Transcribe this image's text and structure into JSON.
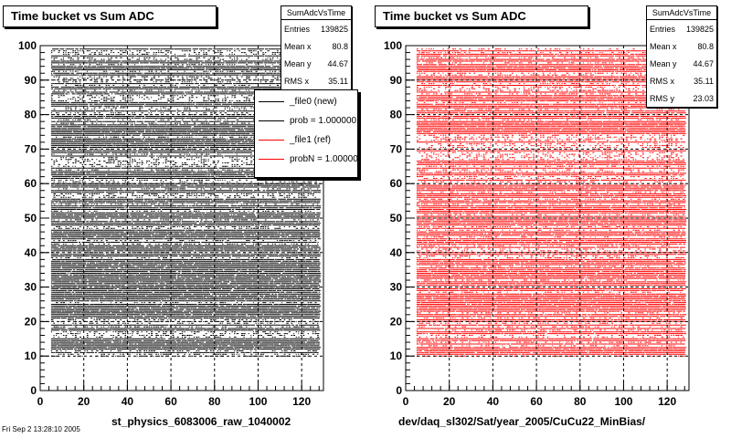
{
  "chart_data": [
    {
      "type": "scatter",
      "title": "Time bucket vs Sum ADC",
      "xlabel": "st_physics_6083006_raw_1040002",
      "ylabel": "",
      "xlim": [
        0,
        130
      ],
      "ylim": [
        0,
        100
      ],
      "x_ticks": [
        "0",
        "20",
        "40",
        "60",
        "80",
        "100",
        "120"
      ],
      "y_ticks": [
        "0",
        "10",
        "20",
        "30",
        "40",
        "50",
        "60",
        "70",
        "80",
        "90",
        "100"
      ],
      "grid": true,
      "marker_color": "#000000",
      "x_range_points": [
        5,
        128
      ],
      "y_range_points": [
        10,
        99
      ],
      "stats": {
        "name": "SumAdcVsTime",
        "rows": [
          {
            "label": "Entries",
            "value": "139825"
          },
          {
            "label": "Mean x",
            "value": "80.8"
          },
          {
            "label": "Mean y",
            "value": "44.67"
          },
          {
            "label": "RMS x",
            "value": "35.11"
          }
        ]
      },
      "legend": {
        "placement": "top-right",
        "entries": [
          {
            "label": "_file0 (new)",
            "color": "#000000"
          },
          {
            "label": "prob = 1.000000",
            "color": "#000000"
          },
          {
            "label": "_file1 (ref)",
            "color": "#ff0000"
          },
          {
            "label": "probN = 1.000000",
            "color": "#ff0000"
          }
        ]
      }
    },
    {
      "type": "scatter",
      "title": "Time bucket vs Sum ADC",
      "xlabel": "dev/daq_sl302/Sat/year_2005/CuCu22_MinBias/",
      "ylabel": "",
      "xlim": [
        0,
        130
      ],
      "ylim": [
        0,
        100
      ],
      "x_ticks": [
        "0",
        "20",
        "40",
        "60",
        "80",
        "100",
        "120"
      ],
      "y_ticks": [
        "0",
        "10",
        "20",
        "30",
        "40",
        "50",
        "60",
        "70",
        "80",
        "90",
        "100"
      ],
      "grid": true,
      "marker_color": "#ff0000",
      "x_range_points": [
        5,
        128
      ],
      "y_range_points": [
        10,
        99
      ],
      "stats": {
        "name": "SumAdcVsTime",
        "rows": [
          {
            "label": "Entries",
            "value": "139825"
          },
          {
            "label": "Mean x",
            "value": "80.8"
          },
          {
            "label": "Mean y",
            "value": "44.67"
          },
          {
            "label": "RMS x",
            "value": "35.11"
          },
          {
            "label": "RMS y",
            "value": "23.03"
          }
        ]
      }
    }
  ],
  "footnote": "Fri Sep  2 13:28:10 2005"
}
